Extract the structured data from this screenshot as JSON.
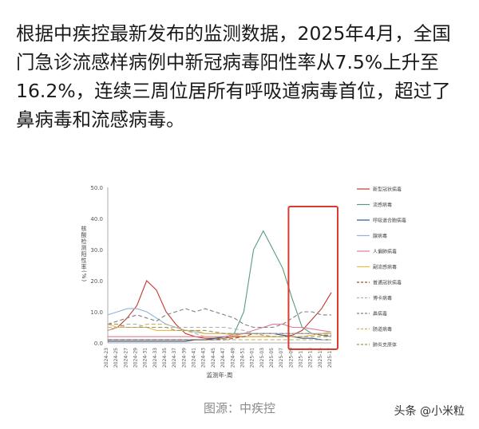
{
  "article": {
    "text": "根据中疾控最新发布的监测数据，2025年4月，全国门急诊流感样病例中新冠病毒阳性率从7.5%上升至16.2%，连续三周位居所有呼吸道病毒首位，超过了鼻病毒和流感病毒。"
  },
  "caption": "图源：中疾控",
  "watermark": {
    "text": "头条 @小米粒"
  },
  "colors": {
    "highlight_box": "#d93b2e"
  },
  "chart_data": {
    "type": "line",
    "title": "",
    "xlabel": "监测年-周",
    "ylabel": "核酸检测阳性率(%)",
    "ylim": [
      0,
      50
    ],
    "yticks": [
      "0.0",
      "10.0",
      "20.0",
      "30.0",
      "40.0",
      "50.0"
    ],
    "x": [
      "2024-23",
      "2024-25",
      "2024-27",
      "2024-29",
      "2024-31",
      "2024-33",
      "2024-35",
      "2024-37",
      "2024-39",
      "2024-41",
      "2024-43",
      "2024-45",
      "2024-47",
      "2024-49",
      "2024-51",
      "2025-01",
      "2025-03",
      "2025-05",
      "2025-07",
      "2025-09",
      "2025-11",
      "2025-13",
      "2025-15",
      "2025-17"
    ],
    "grid": false,
    "legend_position": "right",
    "series": [
      {
        "name": "新型冠状病毒",
        "color": "#c0392b",
        "dash": "",
        "values": [
          4,
          5,
          8,
          12,
          20,
          17,
          10,
          6,
          3,
          2,
          1.5,
          1.5,
          1.5,
          2,
          2,
          2,
          2,
          2,
          2,
          2.5,
          4,
          7.5,
          11,
          16.2
        ]
      },
      {
        "name": "流感病毒",
        "color": "#5b9a82",
        "dash": "",
        "values": [
          1,
          1,
          1,
          1,
          1,
          1,
          1,
          1,
          1,
          1,
          1,
          1,
          1.5,
          3,
          10,
          30,
          36,
          30,
          24,
          14,
          5,
          3,
          2.5,
          2
        ]
      },
      {
        "name": "呼吸道合胞病毒",
        "color": "#2f5597",
        "dash": "",
        "values": [
          0.5,
          0.5,
          0.5,
          0.5,
          0.5,
          0.5,
          0.5,
          0.5,
          0.5,
          1,
          1,
          1.5,
          2,
          2.5,
          3,
          3,
          3,
          3,
          2.5,
          2,
          1.5,
          1.5,
          1,
          1
        ]
      },
      {
        "name": "腺病毒",
        "color": "#8fb4d8",
        "dash": "",
        "values": [
          9,
          10,
          11,
          11,
          10,
          8,
          6,
          5,
          4,
          3.5,
          3,
          3,
          3,
          3,
          3,
          3,
          3,
          3,
          3,
          3,
          3,
          3,
          3,
          3
        ]
      },
      {
        "name": "人偏肺病毒",
        "color": "#e07b9a",
        "dash": "",
        "values": [
          2,
          2,
          2,
          2,
          2,
          2,
          2,
          2,
          2,
          2,
          2,
          2,
          2,
          2.5,
          3,
          4,
          5,
          6,
          6,
          5,
          5,
          4.5,
          4,
          3.5
        ]
      },
      {
        "name": "副流感病毒",
        "color": "#f0b84a",
        "dash": "",
        "values": [
          6,
          5,
          5,
          5,
          5,
          4,
          4,
          4,
          4,
          4,
          3,
          3,
          3,
          2.5,
          2,
          2,
          2,
          2,
          2,
          2,
          2,
          2.5,
          3,
          3.5
        ]
      },
      {
        "name": "普通冠状病毒",
        "color": "#a0522d",
        "dash": "5,3",
        "values": [
          1,
          1,
          1,
          1,
          1,
          1,
          1,
          1,
          1,
          1,
          1,
          1,
          1,
          1.5,
          2,
          3,
          3,
          3,
          3,
          3,
          3,
          3,
          2.5,
          2.5
        ]
      },
      {
        "name": "博卡病毒",
        "color": "#b0b0b0",
        "dash": "5,3",
        "values": [
          5,
          5,
          6,
          6,
          5,
          5,
          5,
          5,
          5,
          5,
          5,
          5,
          5,
          4.5,
          4,
          3,
          3,
          3,
          3,
          3,
          3,
          3,
          3,
          3
        ]
      },
      {
        "name": "鼻病毒",
        "color": "#808080",
        "dash": "5,3",
        "values": [
          6,
          7,
          8,
          9,
          8,
          7,
          9,
          10,
          11,
          10,
          11,
          10,
          9,
          8,
          6,
          5,
          5,
          5,
          6,
          8,
          10,
          10,
          9,
          9
        ]
      },
      {
        "name": "肠道病毒",
        "color": "#c6b36a",
        "dash": "5,3",
        "values": [
          4,
          5,
          5,
          5,
          6,
          6,
          6,
          5,
          4,
          3,
          2,
          2,
          1,
          1,
          1,
          1,
          1,
          1,
          1,
          1,
          1,
          1,
          1,
          1
        ]
      },
      {
        "name": "肺炎支原体",
        "color": "#9a9a5a",
        "dash": "5,3",
        "values": [
          6,
          6,
          5,
          5,
          5,
          5,
          5,
          4,
          4,
          4,
          4,
          3.5,
          3,
          3,
          3,
          3,
          2.5,
          2,
          2,
          2,
          2,
          2,
          2,
          2
        ]
      }
    ]
  }
}
